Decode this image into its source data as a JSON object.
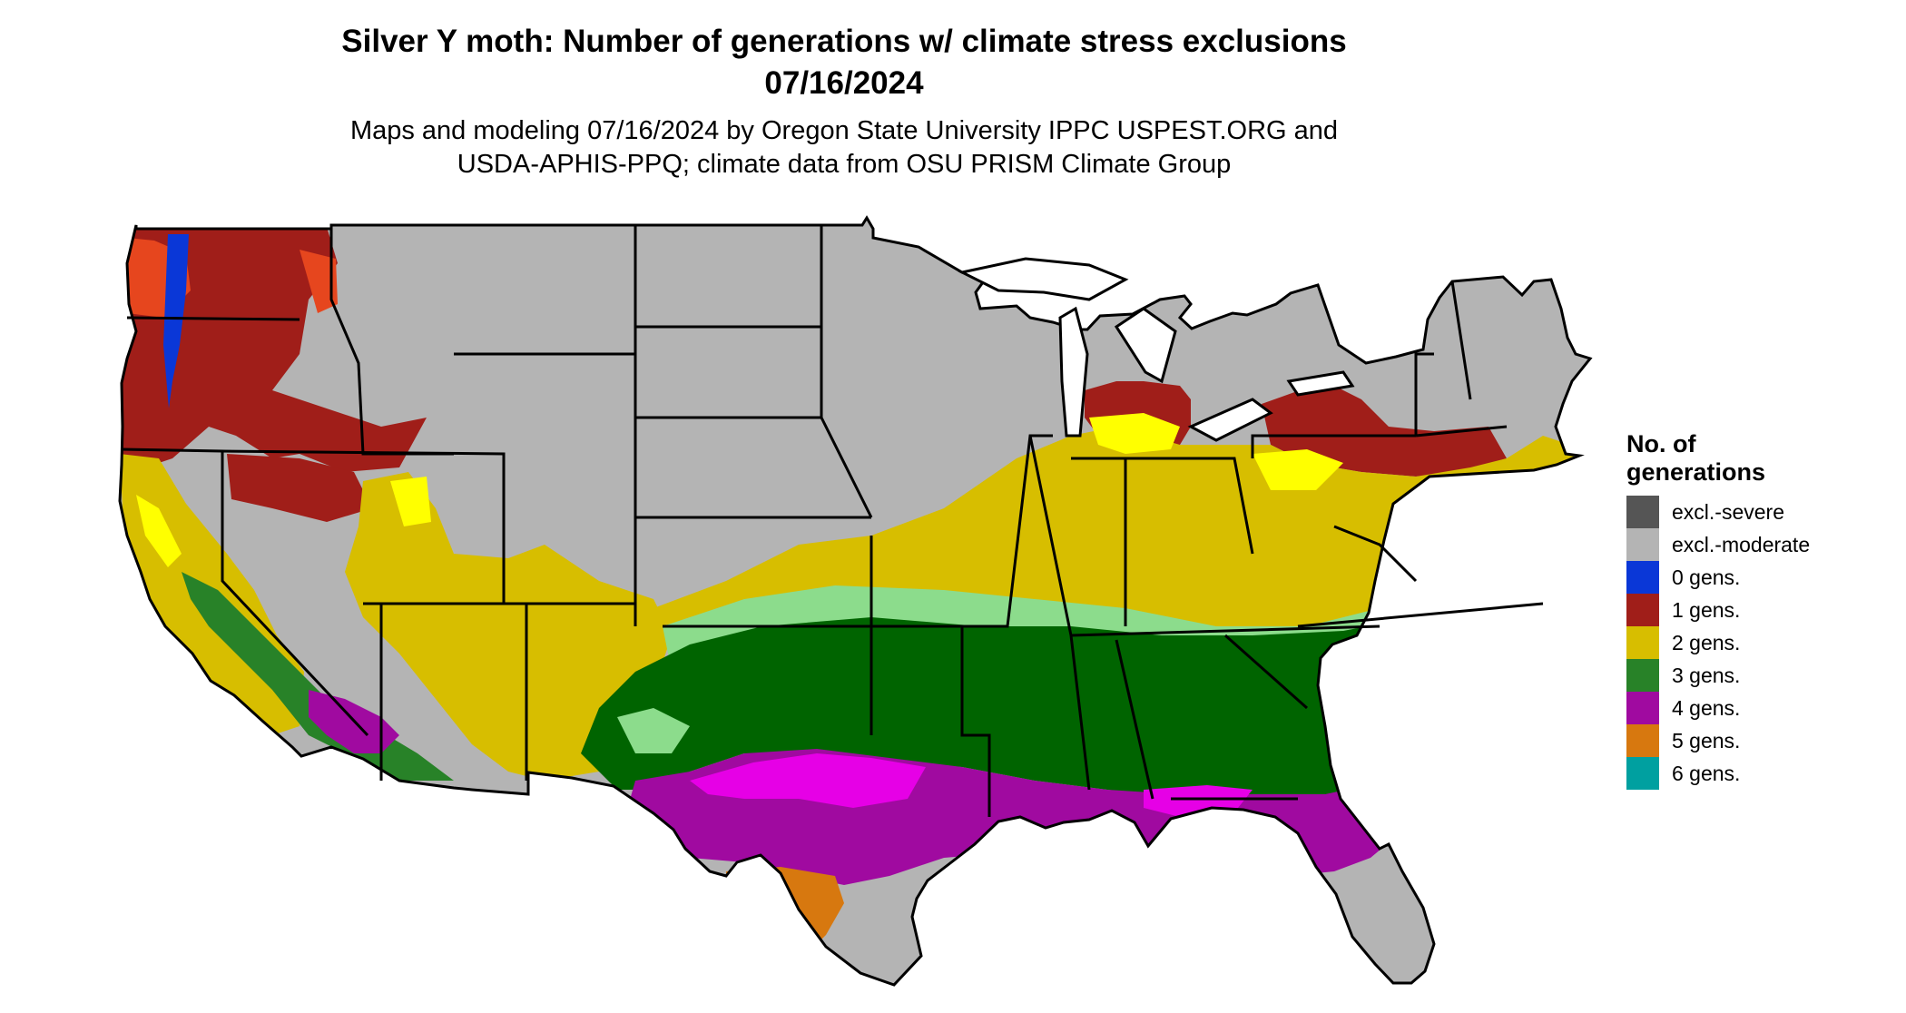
{
  "header": {
    "title_line1": "Silver Y moth: Number of generations w/ climate stress exclusions",
    "title_line2": "07/16/2024",
    "subtitle_line1": "Maps and modeling 07/16/2024 by Oregon State University IPPC USPEST.ORG and",
    "subtitle_line2": "USDA-APHIS-PPQ; climate data from OSU PRISM Climate Group"
  },
  "legend": {
    "title_line1": "No. of",
    "title_line2": "generations",
    "items": [
      {
        "label": "excl.-severe",
        "color": "#555555"
      },
      {
        "label": "excl.-moderate",
        "color": "#b4b4b4"
      },
      {
        "label": "0 gens.",
        "color": "#0a37d7"
      },
      {
        "label": "1 gens.",
        "color": "#a01e19"
      },
      {
        "label": "2 gens.",
        "color": "#d7be00"
      },
      {
        "label": "3 gens.",
        "color": "#288228"
      },
      {
        "label": "4 gens.",
        "color": "#a00aa0"
      },
      {
        "label": "5 gens.",
        "color": "#d7780f"
      },
      {
        "label": "6 gens.",
        "color": "#00a0a0"
      }
    ]
  },
  "map_colors": {
    "one_gen_bright": "#e6461e",
    "two_gen_bright": "#ffff00",
    "three_gen_light": "#8cdc8c",
    "three_gen_dark": "#006400",
    "four_gen_bright": "#e600e6",
    "state_border": "#000000"
  }
}
